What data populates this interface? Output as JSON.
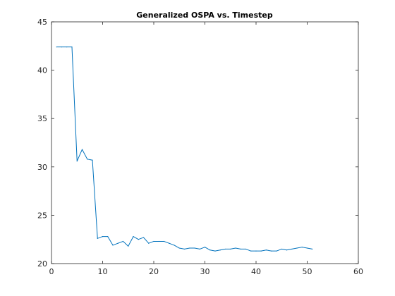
{
  "chart_data": {
    "type": "line",
    "title": "Generalized OSPA vs. Timestep",
    "xlabel": "",
    "ylabel": "",
    "xlim": [
      0,
      60
    ],
    "ylim": [
      20,
      45
    ],
    "xticks": [
      0,
      10,
      20,
      30,
      40,
      50,
      60
    ],
    "yticks": [
      20,
      25,
      30,
      35,
      40,
      45
    ],
    "grid": false,
    "legend": "none",
    "series": [
      {
        "color": "#0072BD",
        "x": [
          1,
          2,
          3,
          4,
          5,
          6,
          7,
          8,
          9,
          10,
          11,
          12,
          13,
          14,
          15,
          16,
          17,
          18,
          19,
          20,
          21,
          22,
          23,
          24,
          25,
          26,
          27,
          28,
          29,
          30,
          31,
          32,
          33,
          34,
          35,
          36,
          37,
          38,
          39,
          40,
          41,
          42,
          43,
          44,
          45,
          46,
          47,
          48,
          49,
          50,
          51
        ],
        "values": [
          42.4,
          42.4,
          42.4,
          42.4,
          30.6,
          31.8,
          30.8,
          30.7,
          22.6,
          22.8,
          22.8,
          21.9,
          22.1,
          22.3,
          21.8,
          22.8,
          22.5,
          22.7,
          22.1,
          22.3,
          22.3,
          22.3,
          22.1,
          21.9,
          21.6,
          21.5,
          21.6,
          21.6,
          21.5,
          21.7,
          21.4,
          21.3,
          21.4,
          21.5,
          21.5,
          21.6,
          21.5,
          21.5,
          21.3,
          21.3,
          21.3,
          21.4,
          21.3,
          21.3,
          21.5,
          21.4,
          21.5,
          21.6,
          21.7,
          21.6,
          21.5
        ]
      }
    ]
  }
}
